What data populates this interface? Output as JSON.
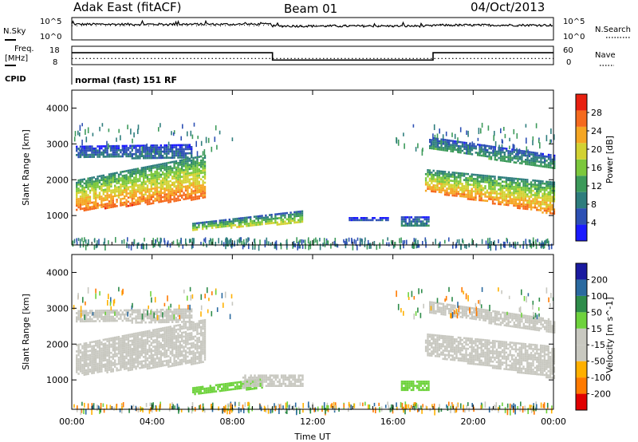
{
  "header": {
    "station": "Adak East (fitACF)",
    "beam": "Beam 01",
    "date": "04/Oct/2013"
  },
  "noise_panel": {
    "left_label": "N.Sky",
    "right_label": "N.Search",
    "left_ticks": [
      "10^5",
      "10^0"
    ],
    "right_ticks": [
      "10^5",
      "10^0"
    ]
  },
  "freq_panel": {
    "left_label_line1": "Freq.",
    "left_label_line2": "[MHz]",
    "right_label": "Nave",
    "left_ticks": [
      "18",
      "8"
    ],
    "right_ticks": [
      "60",
      "0"
    ]
  },
  "cpid": {
    "label": "CPID",
    "text": "normal (fast) 151 RF"
  },
  "power_panel": {
    "ylabel": "Slant Range [km]",
    "yticks": [
      "4000",
      "3000",
      "2000",
      "1000"
    ],
    "cbar_label": "Power [dB]",
    "cbar_ticks": [
      "28",
      "24",
      "20",
      "16",
      "12",
      "8",
      "4"
    ]
  },
  "velocity_panel": {
    "ylabel": "Slant Range [km]",
    "yticks": [
      "4000",
      "3000",
      "2000",
      "1000"
    ],
    "cbar_label": "Velocity [m s^-1]",
    "cbar_ticks": [
      "200",
      "100",
      "50",
      "15",
      "-15",
      "-50",
      "-100",
      "-200"
    ]
  },
  "xaxis": {
    "ticks": [
      "00:00",
      "04:00",
      "08:00",
      "12:00",
      "16:00",
      "20:00",
      "00:00"
    ],
    "label": "Time UT"
  },
  "colors": {
    "power_scale": [
      "#1a1aff",
      "#2d50b4",
      "#2e7d7d",
      "#3c9a5a",
      "#7cc83c",
      "#d2d232",
      "#f5a623",
      "#f56a1e",
      "#e82010"
    ],
    "velocity_scale": [
      "#e00000",
      "#ff7a00",
      "#ffb000",
      "#c8c8c0",
      "#c8c8c0",
      "#6ed23c",
      "#2e8c4a",
      "#2a6aa0",
      "#1a1aa0"
    ],
    "ground_scatter": "#c0c0b8"
  },
  "chart_data": {
    "type": "heatmap",
    "x_range_hours": [
      0,
      24
    ],
    "y_range_km": [
      180,
      4500
    ],
    "noise": {
      "scale": "log",
      "ylim": [
        1,
        100000
      ],
      "level_segments": [
        {
          "start_h": 0,
          "end_h": 10,
          "log10_level": 3.5
        },
        {
          "start_h": 10,
          "end_h": 18,
          "log10_level": 3.1
        },
        {
          "start_h": 18,
          "end_h": 24,
          "log10_level": 3.3
        }
      ]
    },
    "frequency": {
      "ylim_mhz": [
        8,
        18
      ],
      "segments": [
        {
          "start_h": 0,
          "end_h": 10,
          "mhz": 14.5
        },
        {
          "start_h": 10,
          "end_h": 18,
          "mhz": 10.5
        },
        {
          "start_h": 18,
          "end_h": 24,
          "mhz": 14.5
        }
      ]
    },
    "nave": {
      "ylim": [
        0,
        60
      ],
      "value": 20
    },
    "power_regions": [
      {
        "name": "morning-band",
        "t0": 0.2,
        "t1": 6.6,
        "r0_start": 1150,
        "r0_end": 1500,
        "r1_start": 2000,
        "r1_end": 2700,
        "peak_db": 27
      },
      {
        "name": "morning-upper",
        "t0": 0.2,
        "t1": 6.0,
        "r0_start": 2650,
        "r0_end": 2600,
        "r1_start": 2950,
        "r1_end": 3000,
        "peak_db": 9
      },
      {
        "name": "midday-patch",
        "t0": 6.0,
        "t1": 11.5,
        "r0_start": 620,
        "r0_end": 820,
        "r1_start": 800,
        "r1_end": 1150,
        "peak_db": 20
      },
      {
        "name": "afternoon-patch",
        "t0": 13.8,
        "t1": 15.8,
        "r0_start": 860,
        "r0_end": 860,
        "r1_start": 960,
        "r1_end": 960,
        "peak_db": 7
      },
      {
        "name": "late-patch",
        "t0": 16.4,
        "t1": 17.8,
        "r0_start": 700,
        "r0_end": 700,
        "r1_start": 980,
        "r1_end": 980,
        "peak_db": 11
      },
      {
        "name": "evening-band",
        "t0": 17.6,
        "t1": 24.0,
        "r0_start": 1700,
        "r0_end": 1050,
        "r1_start": 2300,
        "r1_end": 1950,
        "peak_db": 26
      },
      {
        "name": "evening-upper",
        "t0": 17.8,
        "t1": 24.0,
        "r0_start": 2900,
        "r0_end": 2300,
        "r1_start": 3200,
        "r1_end": 2700,
        "peak_db": 13
      }
    ],
    "velocity_regions": [
      {
        "name": "morning-band",
        "t0": 0.2,
        "t1": 6.6,
        "r0_start": 1150,
        "r0_end": 1500,
        "r1_start": 2000,
        "r1_end": 2700,
        "velocity": 0
      },
      {
        "name": "morning-upper",
        "t0": 0.2,
        "t1": 6.0,
        "r0_start": 2650,
        "r0_end": 2600,
        "r1_start": 2950,
        "r1_end": 3000,
        "velocity": 0
      },
      {
        "name": "midday-green",
        "t0": 6.0,
        "t1": 9.5,
        "r0_start": 620,
        "r0_end": 800,
        "r1_start": 800,
        "r1_end": 1050,
        "velocity": 40
      },
      {
        "name": "midday-gray",
        "t0": 8.5,
        "t1": 11.5,
        "r0_start": 800,
        "r0_end": 850,
        "r1_start": 1150,
        "r1_end": 1150,
        "velocity": 0
      },
      {
        "name": "late-patch",
        "t0": 16.4,
        "t1": 17.8,
        "r0_start": 700,
        "r0_end": 700,
        "r1_start": 980,
        "r1_end": 980,
        "velocity": 30
      },
      {
        "name": "evening-band",
        "t0": 17.6,
        "t1": 24.0,
        "r0_start": 1700,
        "r0_end": 1050,
        "r1_start": 2300,
        "r1_end": 1950,
        "velocity": 0
      },
      {
        "name": "evening-upper",
        "t0": 17.8,
        "t1": 24.0,
        "r0_start": 2900,
        "r0_end": 2300,
        "r1_start": 3200,
        "r1_end": 2700,
        "velocity": 0
      }
    ]
  }
}
